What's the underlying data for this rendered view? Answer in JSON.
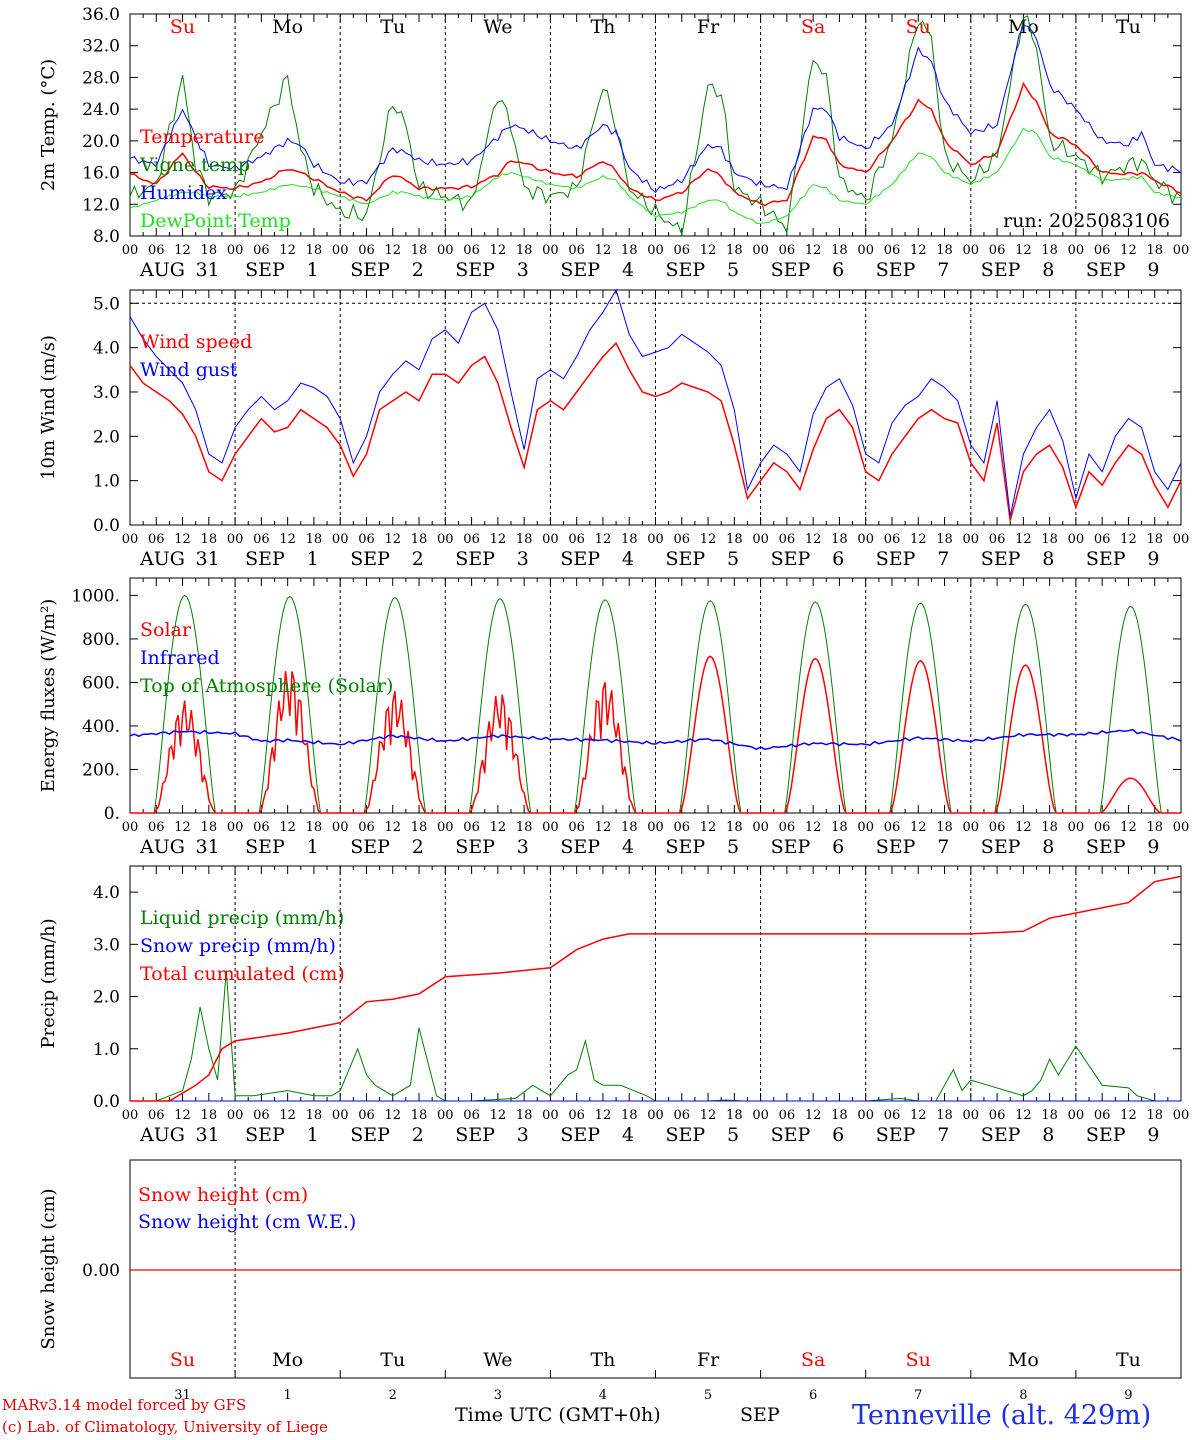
{
  "chart_data": [
    {
      "type": "line",
      "ylabel": "2m Temp. (°C)",
      "ylim": [
        8,
        36
      ],
      "yticks": [
        "36.0",
        "32.0",
        "28.0",
        "24.0",
        "20.0",
        "16.0",
        "12.0",
        "8.0"
      ],
      "run_label": "run: 2025083106",
      "grid": false,
      "legend_position": "upper-left",
      "x_hours": [
        0,
        6,
        12,
        15,
        18,
        24,
        30,
        36,
        39,
        42,
        48,
        54,
        60,
        63,
        66,
        72,
        78,
        84,
        87,
        90,
        96,
        102,
        108,
        111,
        114,
        120,
        126,
        132,
        135,
        138,
        144,
        150,
        156,
        159,
        162,
        168,
        174,
        180,
        183,
        186,
        192,
        198,
        204,
        207,
        210,
        216,
        222,
        228,
        231,
        234,
        240
      ],
      "series": [
        {
          "name": "Temperature",
          "color": "#ff0000",
          "values": [
            15.8,
            14.5,
            18.5,
            16,
            14.2,
            14,
            14.8,
            16.5,
            16,
            15.2,
            13.5,
            12.5,
            15.8,
            15,
            14,
            14,
            14.2,
            15.8,
            17.5,
            17.2,
            16,
            15.5,
            17.5,
            16.2,
            14,
            12.5,
            13.5,
            16.5,
            15.5,
            13.5,
            12,
            12.5,
            20.5,
            20.2,
            17,
            16,
            20,
            25,
            24,
            20,
            17,
            18.5,
            27,
            25,
            21,
            19.5,
            16,
            15.8,
            16,
            15,
            13.5
          ]
        },
        {
          "name": "Vigne temp",
          "color": "#008000",
          "values": [
            13,
            14.5,
            28,
            17,
            13,
            13.5,
            21,
            28,
            19,
            14,
            11,
            10.5,
            25,
            22,
            14,
            13,
            12,
            26,
            22,
            14,
            13,
            14,
            27,
            22,
            14,
            11,
            8.5,
            27,
            26,
            14,
            12,
            9,
            30.5,
            28,
            15,
            12.5,
            20,
            35.5,
            33,
            18,
            15,
            18,
            36,
            32,
            20,
            18,
            15.5,
            17,
            17.5,
            15,
            12.5
          ]
        },
        {
          "name": "Humidex",
          "color": "#0000ff",
          "values": [
            17.8,
            17,
            24,
            20.5,
            17,
            16.5,
            18,
            20,
            19.5,
            17,
            14.8,
            14.8,
            19,
            18.5,
            17.5,
            17,
            17.5,
            20.5,
            22,
            21.5,
            20,
            19,
            22,
            21,
            16.5,
            13.7,
            15,
            19.5,
            19,
            16,
            14.5,
            14,
            24,
            24,
            20.5,
            19,
            22,
            31.5,
            30,
            25,
            21,
            22,
            35,
            33,
            27,
            24,
            20,
            19.5,
            21,
            17,
            16.2
          ]
        },
        {
          "name": "DewPoint Temp",
          "color": "#20e020",
          "values": [
            11.5,
            12.5,
            13.5,
            13.5,
            13,
            13,
            13.5,
            14.5,
            14.3,
            14,
            13,
            12,
            13.5,
            13.5,
            13,
            12.5,
            13,
            15.5,
            16,
            15.5,
            14.5,
            14,
            15.5,
            15,
            13,
            10.5,
            11,
            12.5,
            12.5,
            11,
            9.5,
            10.5,
            14.5,
            14,
            12.5,
            12,
            14.5,
            18.5,
            18,
            16,
            14.5,
            16,
            21.5,
            21,
            18,
            17,
            15,
            15.2,
            15.5,
            13.5,
            12.8
          ]
        }
      ]
    },
    {
      "type": "line",
      "ylabel": "10m Wind (m/s)",
      "ylim": [
        0,
        5.3
      ],
      "yticks": [
        "5.0",
        "4.0",
        "3.0",
        "2.0",
        "1.0",
        "0.0"
      ],
      "reference_line": 5.0,
      "legend_position": "upper-left",
      "x_hours": [
        0,
        3,
        6,
        9,
        12,
        15,
        18,
        21,
        24,
        27,
        30,
        33,
        36,
        39,
        42,
        45,
        48,
        51,
        54,
        57,
        60,
        63,
        66,
        69,
        72,
        75,
        78,
        81,
        84,
        87,
        90,
        93,
        96,
        99,
        102,
        105,
        108,
        111,
        114,
        117,
        120,
        123,
        126,
        129,
        132,
        135,
        138,
        141,
        144,
        147,
        150,
        153,
        156,
        159,
        162,
        165,
        168,
        171,
        174,
        177,
        180,
        183,
        186,
        189,
        192,
        195,
        198,
        201,
        204,
        207,
        210,
        213,
        216,
        219,
        222,
        225,
        228,
        231,
        234,
        237,
        240
      ],
      "series": [
        {
          "name": "Wind speed",
          "color": "#ff0000",
          "values": [
            3.6,
            3.2,
            3,
            2.8,
            2.5,
            2,
            1.2,
            1.0,
            1.6,
            2,
            2.4,
            2.1,
            2.2,
            2.6,
            2.4,
            2.2,
            1.8,
            1.1,
            1.6,
            2.6,
            2.8,
            3,
            2.8,
            3.4,
            3.4,
            3.2,
            3.6,
            3.8,
            3.2,
            2.2,
            1.3,
            2.6,
            2.8,
            2.6,
            3,
            3.4,
            3.8,
            4.1,
            3.5,
            3,
            2.9,
            3,
            3.2,
            3.1,
            3,
            2.8,
            1.8,
            0.6,
            1,
            1.4,
            1.2,
            0.8,
            1.7,
            2.4,
            2.6,
            2.2,
            1.2,
            1.0,
            1.6,
            2,
            2.4,
            2.6,
            2.4,
            2.3,
            1.4,
            1.0,
            2.3,
            0.1,
            1.2,
            1.6,
            1.8,
            1.3,
            0.4,
            1.2,
            0.9,
            1.4,
            1.8,
            1.6,
            0.9,
            0.4,
            1.0
          ]
        },
        {
          "name": "Wind gust",
          "color": "#0000ff",
          "values": [
            4.7,
            4.2,
            3.8,
            3.5,
            3.2,
            2.6,
            1.6,
            1.4,
            2.2,
            2.6,
            2.9,
            2.6,
            2.8,
            3.2,
            3.1,
            2.9,
            2.4,
            1.4,
            2,
            3,
            3.4,
            3.7,
            3.5,
            4.2,
            4.4,
            4.1,
            4.8,
            5.0,
            4.4,
            3,
            1.7,
            3.3,
            3.5,
            3.3,
            3.8,
            4.4,
            4.8,
            5.3,
            4.3,
            3.8,
            3.9,
            4.0,
            4.3,
            4.1,
            3.9,
            3.6,
            2.6,
            0.8,
            1.4,
            1.8,
            1.6,
            1.2,
            2.5,
            3.1,
            3.3,
            2.7,
            1.6,
            1.4,
            2.3,
            2.7,
            2.9,
            3.3,
            3.1,
            2.8,
            1.8,
            1.4,
            2.8,
            0.2,
            1.6,
            2.2,
            2.6,
            1.9,
            0.6,
            1.6,
            1.2,
            2,
            2.4,
            2.2,
            1.2,
            0.8,
            1.4
          ]
        }
      ]
    },
    {
      "type": "line",
      "ylabel": "Energy fluxes (W/m²)",
      "ylim": [
        0,
        1080
      ],
      "yticks": [
        "1000.",
        "800.",
        "600.",
        "400.",
        "200.",
        "0."
      ],
      "legend_position": "upper-left",
      "day_peaks": {
        "solar": [
          520,
          680,
          570,
          560,
          620,
          720,
          710,
          700,
          680,
          160
        ],
        "top_of_atmosphere": [
          1000,
          995,
          990,
          985,
          980,
          975,
          970,
          965,
          960,
          950
        ]
      },
      "series": [
        {
          "name": "Solar",
          "color": "#ff0000"
        },
        {
          "name": "Infrared",
          "color": "#0000ff",
          "x_hours": [
            0,
            12,
            24,
            30,
            36,
            48,
            60,
            72,
            84,
            96,
            108,
            120,
            132,
            144,
            156,
            168,
            180,
            192,
            204,
            216,
            228,
            240
          ],
          "values": [
            355,
            375,
            365,
            330,
            335,
            315,
            355,
            330,
            355,
            340,
            335,
            320,
            340,
            295,
            320,
            315,
            345,
            330,
            360,
            360,
            380,
            335
          ]
        },
        {
          "name": "Top of Atmosphere (Solar)",
          "color": "#008000"
        }
      ]
    },
    {
      "type": "line",
      "ylabel": "Precip (mm/h)",
      "ylim": [
        0,
        4.5
      ],
      "yticks": [
        "4.0",
        "3.0",
        "2.0",
        "1.0",
        "0.0"
      ],
      "legend_position": "upper-left",
      "series": [
        {
          "name": "Liquid precip (mm/h)",
          "color": "#008000",
          "x_hours": [
            0,
            6,
            9,
            12,
            14,
            16,
            18,
            20,
            22,
            24,
            28,
            36,
            42,
            46,
            48,
            52,
            54,
            56,
            60,
            64,
            66,
            70,
            72,
            78,
            88,
            92,
            96,
            100,
            102,
            104,
            106,
            108,
            112,
            118,
            120,
            126,
            132,
            136,
            140,
            144,
            156,
            168,
            176,
            180,
            184,
            186,
            188,
            190,
            192,
            196,
            200,
            204,
            206,
            208,
            210,
            212,
            216,
            222,
            228,
            230,
            232,
            234,
            236,
            240
          ],
          "values": [
            0,
            0,
            0.1,
            0.2,
            0.8,
            1.8,
            1.0,
            0.4,
            2.5,
            0.1,
            0.1,
            0.2,
            0.1,
            0.1,
            0.2,
            1.0,
            0.5,
            0.3,
            0.1,
            0.3,
            1.4,
            0.1,
            0,
            0,
            0.05,
            0.3,
            0.1,
            0.5,
            0.6,
            1.15,
            0.4,
            0.3,
            0.3,
            0.1,
            0,
            0,
            0,
            0.02,
            0,
            0,
            0,
            0,
            0.05,
            0,
            0,
            0.3,
            0.6,
            0.2,
            0.4,
            0.3,
            0.2,
            0.1,
            0.2,
            0.4,
            0.8,
            0.5,
            1.05,
            0.3,
            0.25,
            0.1,
            0.05,
            0,
            0,
            0
          ]
        },
        {
          "name": "Snow precip (mm/h)",
          "color": "#0000ff",
          "x_hours": [
            0,
            240
          ],
          "values": [
            0,
            0
          ]
        },
        {
          "name": "Total cumulated (cm)",
          "color": "#ff0000",
          "x_hours": [
            0,
            9,
            15,
            18,
            21,
            24,
            36,
            42,
            48,
            54,
            60,
            66,
            72,
            84,
            96,
            102,
            108,
            114,
            120,
            144,
            168,
            192,
            204,
            210,
            216,
            228,
            234,
            240
          ],
          "values": [
            0,
            0,
            0.3,
            0.5,
            1.0,
            1.15,
            1.3,
            1.4,
            1.5,
            1.9,
            1.95,
            2.05,
            2.38,
            2.45,
            2.55,
            2.9,
            3.1,
            3.2,
            3.2,
            3.2,
            3.2,
            3.2,
            3.25,
            3.5,
            3.6,
            3.8,
            4.2,
            4.3
          ]
        }
      ]
    },
    {
      "type": "line",
      "ylabel": "Snow height (cm)",
      "yticks": [
        "0.00"
      ],
      "legend_position": "upper-left",
      "series": [
        {
          "name": "Snow height (cm)",
          "color": "#ff0000",
          "x_hours": [
            0,
            240
          ],
          "values": [
            0,
            0
          ]
        },
        {
          "name": "Snow height (cm W.E.)",
          "color": "#0000ff",
          "x_hours": [
            0,
            240
          ],
          "values": [
            0,
            0
          ]
        }
      ]
    }
  ],
  "x_axis": {
    "hour_ticks": [
      "00",
      "06",
      "12",
      "18"
    ],
    "end_tick": "00",
    "date_labels": [
      [
        "AUG",
        "31"
      ],
      [
        "SEP",
        "1"
      ],
      [
        "SEP",
        "2"
      ],
      [
        "SEP",
        "3"
      ],
      [
        "SEP",
        "4"
      ],
      [
        "SEP",
        "5"
      ],
      [
        "SEP",
        "6"
      ],
      [
        "SEP",
        "7"
      ],
      [
        "SEP",
        "8"
      ],
      [
        "SEP",
        "9"
      ]
    ],
    "weekdays": [
      "Su",
      "Mo",
      "Tu",
      "We",
      "Th",
      "Fr",
      "Sa",
      "Su",
      "Mo",
      "Tu"
    ],
    "weekday_colors": [
      "#ff0000",
      "#000000",
      "#000000",
      "#000000",
      "#000000",
      "#000000",
      "#ff0000",
      "#ff0000",
      "#000000",
      "#000000"
    ],
    "day_numbers": [
      "31",
      "1",
      "2",
      "3",
      "4",
      "5",
      "6",
      "7",
      "8",
      "9"
    ]
  },
  "footer": {
    "credit_line1": "MARv3.14 model forced by GFS",
    "credit_line2": "(c) Lab. of Climatology, University of Liege",
    "time_label": "Time UTC (GMT+0h)",
    "month_label": "SEP",
    "station": "Tenneville (alt. 429m)"
  }
}
